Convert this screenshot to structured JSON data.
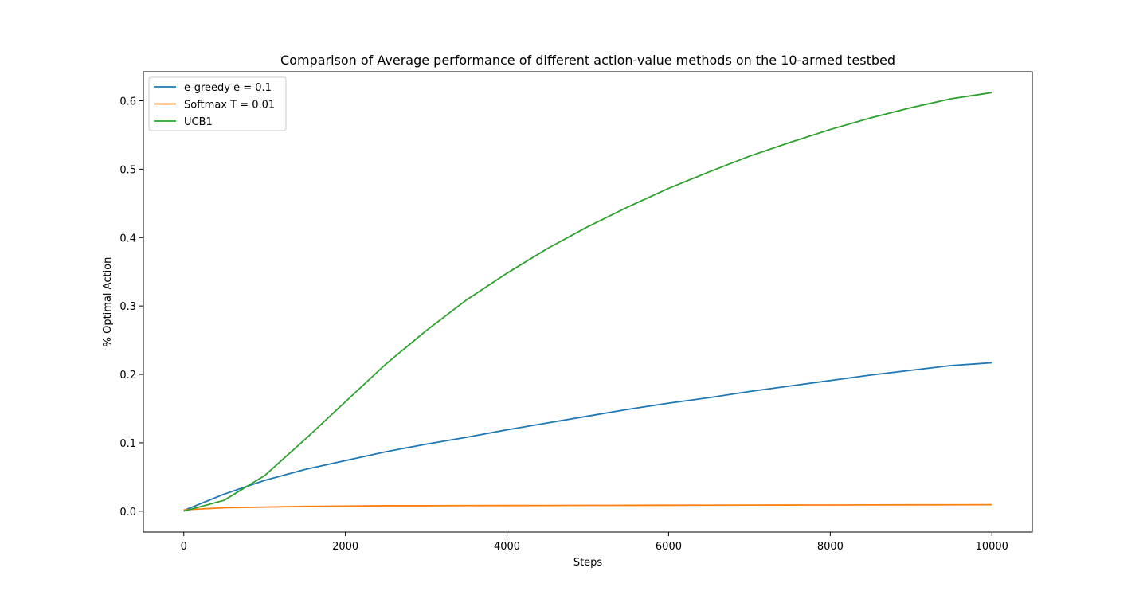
{
  "chart_data": {
    "type": "line",
    "title": "Comparison of Average performance of different action-value methods on the 10-armed testbed",
    "xlabel": "Steps",
    "ylabel": "% Optimal Action",
    "xlim": [
      -500,
      10500
    ],
    "ylim": [
      -0.0305,
      0.6425
    ],
    "xticks": [
      0,
      2000,
      4000,
      6000,
      8000,
      10000
    ],
    "xtick_labels": [
      "0",
      "2000",
      "4000",
      "6000",
      "8000",
      "10000"
    ],
    "yticks": [
      0.0,
      0.1,
      0.2,
      0.3,
      0.4,
      0.5,
      0.6
    ],
    "ytick_labels": [
      "0.0",
      "0.1",
      "0.2",
      "0.3",
      "0.4",
      "0.5",
      "0.6"
    ],
    "grid": false,
    "legend_position": "top-left",
    "x": [
      0,
      500,
      1000,
      1500,
      2000,
      2500,
      3000,
      3500,
      4000,
      4500,
      5000,
      5500,
      6000,
      6500,
      7000,
      7500,
      8000,
      8500,
      9000,
      9500,
      10000
    ],
    "series": [
      {
        "name": "e-greedy e = 0.1",
        "color": "#1f77b4",
        "values": [
          0.001,
          0.025,
          0.045,
          0.061,
          0.074,
          0.087,
          0.098,
          0.108,
          0.119,
          0.129,
          0.139,
          0.149,
          0.158,
          0.166,
          0.175,
          0.183,
          0.191,
          0.199,
          0.206,
          0.213,
          0.217
        ]
      },
      {
        "name": "Softmax T = 0.01",
        "color": "#ff7f0e",
        "values": [
          0.002,
          0.005,
          0.006,
          0.007,
          0.0075,
          0.008,
          0.008,
          0.0082,
          0.0083,
          0.0084,
          0.0085,
          0.0086,
          0.0087,
          0.0088,
          0.0089,
          0.009,
          0.0091,
          0.0092,
          0.0093,
          0.0094,
          0.0095
        ]
      },
      {
        "name": "UCB1",
        "color": "#2ca02c",
        "values": [
          0.0,
          0.016,
          0.052,
          0.105,
          0.16,
          0.215,
          0.264,
          0.309,
          0.348,
          0.384,
          0.416,
          0.445,
          0.472,
          0.496,
          0.519,
          0.539,
          0.558,
          0.575,
          0.59,
          0.603,
          0.612
        ]
      }
    ]
  }
}
